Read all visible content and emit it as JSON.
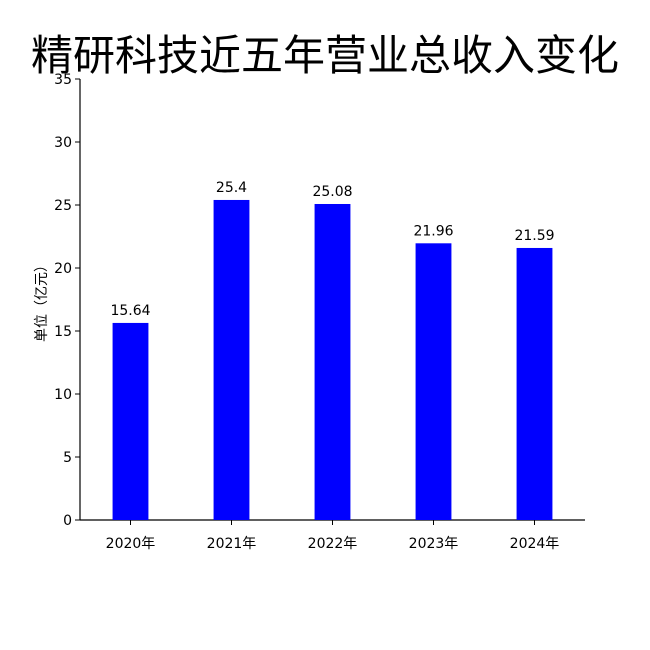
{
  "chart_data": {
    "type": "bar",
    "title": "精研科技近五年营业总收入变化",
    "ylabel": "单位（亿元）",
    "xlabel": "",
    "categories": [
      "2020年",
      "2021年",
      "2022年",
      "2023年",
      "2024年"
    ],
    "values": [
      15.64,
      25.4,
      25.08,
      21.96,
      21.59
    ],
    "data_labels": [
      "15.64",
      "25.4",
      "25.08",
      "21.96",
      "21.59"
    ],
    "ylim": [
      0,
      35
    ],
    "yticks": [
      0,
      5,
      10,
      15,
      20,
      25,
      30,
      35
    ],
    "bar_color": "#0000ff",
    "grid": false,
    "legend": "none"
  }
}
